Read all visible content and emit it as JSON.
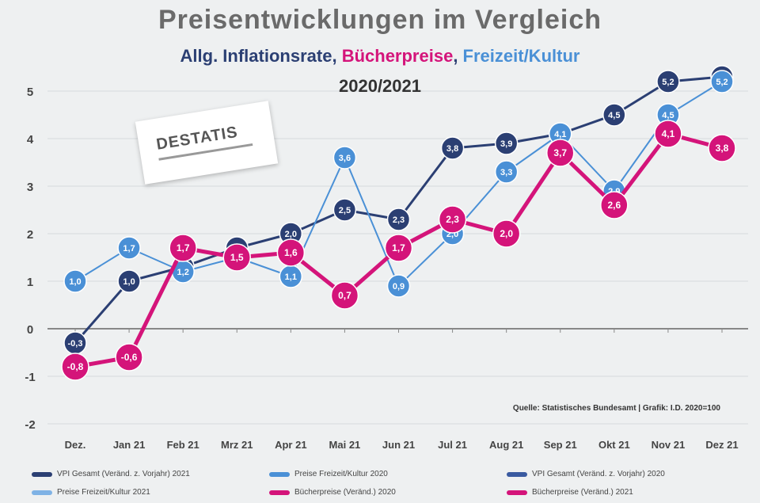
{
  "chart_data": {
    "type": "line",
    "title": "Preisentwicklungen im  Vergleich",
    "subtitle_parts": [
      {
        "text": "Allg. Inflationsrate",
        "color": "#2b3f73"
      },
      {
        "text": ", ",
        "color": "#2b3f73"
      },
      {
        "text": "Bücherpreise",
        "color": "#d4147a"
      },
      {
        "text": ", ",
        "color": "#2b3f73"
      },
      {
        "text": "Freizeit/Kultur",
        "color": "#4a90d6"
      }
    ],
    "period": "2020/2021",
    "source": "Quelle: Statistisches Bundesamt | Grafik: I.D. 2020=100",
    "logo_text": "DESTATIS",
    "ylim": [
      -2,
      5.5
    ],
    "y_ticks": [
      "-2",
      "-1",
      "0",
      "1",
      "2",
      "3",
      "4",
      "5"
    ],
    "categories": [
      "Dez.",
      "Jan 21",
      "Feb 21",
      "Mrz 21",
      "Apr 21",
      "Mai 21",
      "Jun 21",
      "Jul 21",
      "Aug 21",
      "Sep 21",
      "Okt 21",
      "Nov 21",
      "Dez 21"
    ],
    "grid": true,
    "series": [
      {
        "name": "Allg. Inflationsrate",
        "color": "#2b3f73",
        "values": [
          -0.3,
          1.0,
          1.3,
          1.7,
          2.0,
          2.5,
          2.3,
          3.8,
          3.9,
          4.1,
          4.5,
          5.2,
          5.3
        ],
        "labels": [
          "-0,3",
          "1,0",
          "1,3",
          "1,7",
          "2,0",
          "2,5",
          "2,3",
          "3,8",
          "3,9",
          "4,1",
          "4,5",
          "5,2",
          "5,3"
        ]
      },
      {
        "name": "Freizeit/Kultur",
        "color": "#4a90d6",
        "values": [
          1.0,
          1.7,
          1.2,
          1.5,
          1.1,
          3.6,
          0.9,
          2.0,
          3.3,
          4.1,
          2.9,
          4.5,
          5.2
        ],
        "labels": [
          "1,0",
          "1,7",
          "1,2",
          "1,5",
          "1,1",
          "3,6",
          "0,9",
          "2,0",
          "3,3",
          "4,1",
          "2,9",
          "4,5",
          "5,2"
        ]
      },
      {
        "name": "Bücherpreise",
        "color": "#d4147a",
        "values": [
          -0.8,
          -0.6,
          1.7,
          1.5,
          1.6,
          0.7,
          1.7,
          2.3,
          2.0,
          3.7,
          2.6,
          4.1,
          3.8
        ],
        "labels": [
          "-0,8",
          "-0,6",
          "1,7",
          "1,5",
          "1,6",
          "0,7",
          "1,7",
          "2,3",
          "2,0",
          "3,7",
          "2,6",
          "4,1",
          "3,8"
        ]
      }
    ]
  },
  "legend": [
    {
      "label": "VPI Gesamt (Veränd. z. Vorjahr) 2021",
      "color": "#2b3f73"
    },
    {
      "label": "Preise Freizeit/Kultur 2020",
      "color": "#4a90d6"
    },
    {
      "label": "VPI Gesamt (Veränd. z. Vorjahr) 2020",
      "color": "#3a5aa0"
    },
    {
      "label": "Preise Freizeit/Kultur 2021",
      "color": "#7fb2e5"
    },
    {
      "label": "Bücherpreise (Veränd.) 2020",
      "color": "#d4147a"
    },
    {
      "label": "Bücherpreise (Veränd.) 2021",
      "color": "#d4147a"
    }
  ]
}
